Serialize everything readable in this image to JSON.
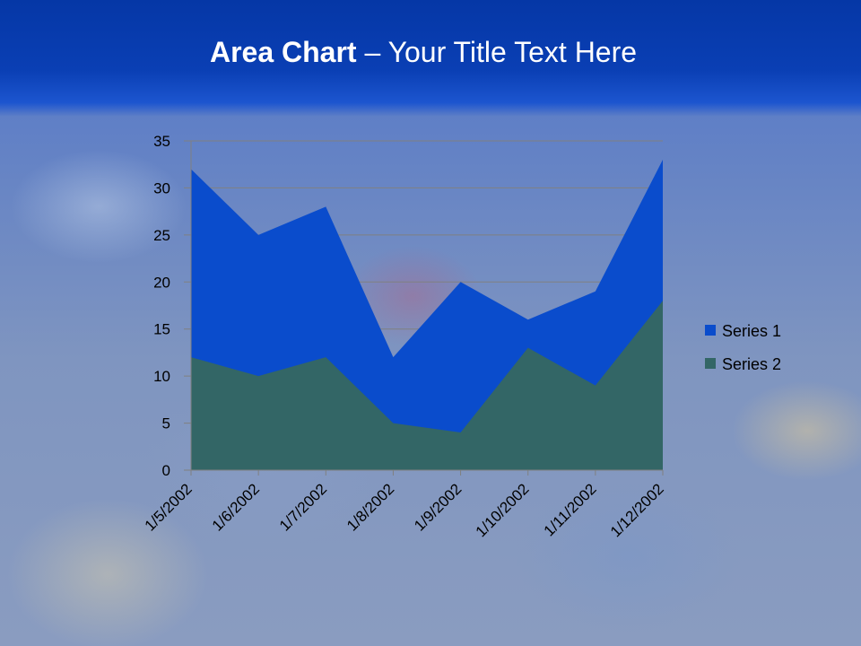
{
  "slide": {
    "title_bold": "Area Chart",
    "title_rest": " – Your Title Text Here"
  },
  "chart_data": {
    "type": "area",
    "categories": [
      "1/5/2002",
      "1/6/2002",
      "1/7/2002",
      "1/8/2002",
      "1/9/2002",
      "1/10/2002",
      "1/11/2002",
      "1/12/2002"
    ],
    "series": [
      {
        "name": "Series 1",
        "values": [
          32,
          25,
          28,
          12,
          20,
          16,
          19,
          33
        ],
        "color": "#0a4ccc"
      },
      {
        "name": "Series 2",
        "values": [
          12,
          10,
          12,
          5,
          4,
          13,
          9,
          18
        ],
        "color": "#336666"
      }
    ],
    "y_ticks": [
      "0",
      "5",
      "10",
      "15",
      "20",
      "25",
      "30",
      "35"
    ],
    "ylim": [
      0,
      35
    ],
    "grid": true,
    "legend": "right"
  }
}
